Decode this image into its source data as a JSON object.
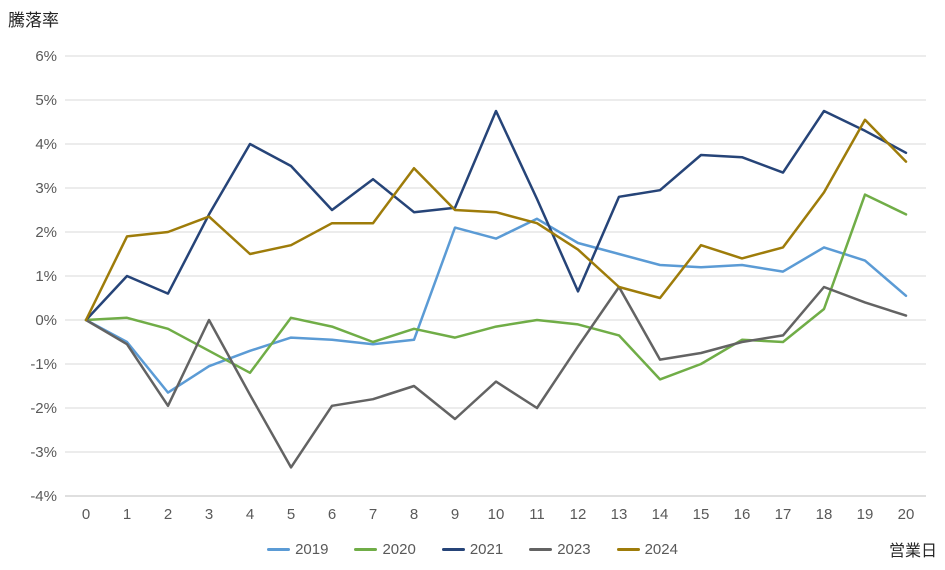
{
  "title": "騰落率",
  "xaxis_title": "営業日",
  "chart_data": {
    "type": "line",
    "x": [
      0,
      1,
      2,
      3,
      4,
      5,
      6,
      7,
      8,
      9,
      10,
      11,
      12,
      13,
      14,
      15,
      16,
      17,
      18,
      19,
      20
    ],
    "xticks": [
      "0",
      "1",
      "2",
      "3",
      "4",
      "5",
      "6",
      "7",
      "8",
      "9",
      "10",
      "11",
      "12",
      "13",
      "14",
      "15",
      "16",
      "17",
      "18",
      "19",
      "20"
    ],
    "yticks": [
      "6%",
      "5%",
      "4%",
      "3%",
      "2%",
      "1%",
      "0%",
      "-1%",
      "-2%",
      "-3%",
      "-4%"
    ],
    "ylim": [
      -4,
      6
    ],
    "ytick_step": 1,
    "grid": true,
    "legend_position": "bottom",
    "gridline_color": "#D9D9D9",
    "axis_line_color": "#BFBFBF",
    "tick_label_color": "#595959",
    "title_color": "#262626",
    "series": [
      {
        "name": "2019",
        "color": "#5B9BD5",
        "values": [
          0,
          -0.5,
          -1.65,
          -1.05,
          -0.7,
          -0.4,
          -0.45,
          -0.55,
          -0.45,
          2.1,
          1.85,
          2.3,
          1.75,
          1.5,
          1.25,
          1.2,
          1.25,
          1.1,
          1.65,
          1.35,
          0.55
        ]
      },
      {
        "name": "2020",
        "color": "#70AD47",
        "values": [
          0,
          0.05,
          -0.2,
          -0.7,
          -1.2,
          0.05,
          -0.15,
          -0.5,
          -0.2,
          -0.4,
          -0.15,
          0,
          -0.1,
          -0.35,
          -1.35,
          -1,
          -0.45,
          -0.5,
          0.25,
          2.85,
          2.4
        ]
      },
      {
        "name": "2021",
        "color": "#264478",
        "values": [
          0,
          1,
          0.6,
          2.4,
          4,
          3.5,
          2.5,
          3.2,
          2.45,
          2.55,
          4.75,
          2.75,
          0.65,
          2.8,
          2.95,
          3.75,
          3.7,
          3.35,
          4.75,
          4.3,
          3.8
        ]
      },
      {
        "name": "2023",
        "color": "#636363",
        "values": [
          0,
          -0.55,
          -1.95,
          0,
          -1.7,
          -3.35,
          -1.95,
          -1.8,
          -1.5,
          -2.25,
          -1.4,
          -2,
          -0.6,
          0.75,
          -0.9,
          -0.75,
          -0.5,
          -0.35,
          0.75,
          0.4,
          0.1
        ]
      },
      {
        "name": "2024",
        "color": "#9E7C0A",
        "values": [
          0,
          1.9,
          2,
          2.35,
          1.5,
          1.7,
          2.2,
          2.2,
          3.45,
          2.5,
          2.45,
          2.2,
          1.6,
          0.75,
          0.5,
          1.7,
          1.4,
          1.65,
          2.9,
          4.55,
          3.6
        ]
      }
    ]
  }
}
